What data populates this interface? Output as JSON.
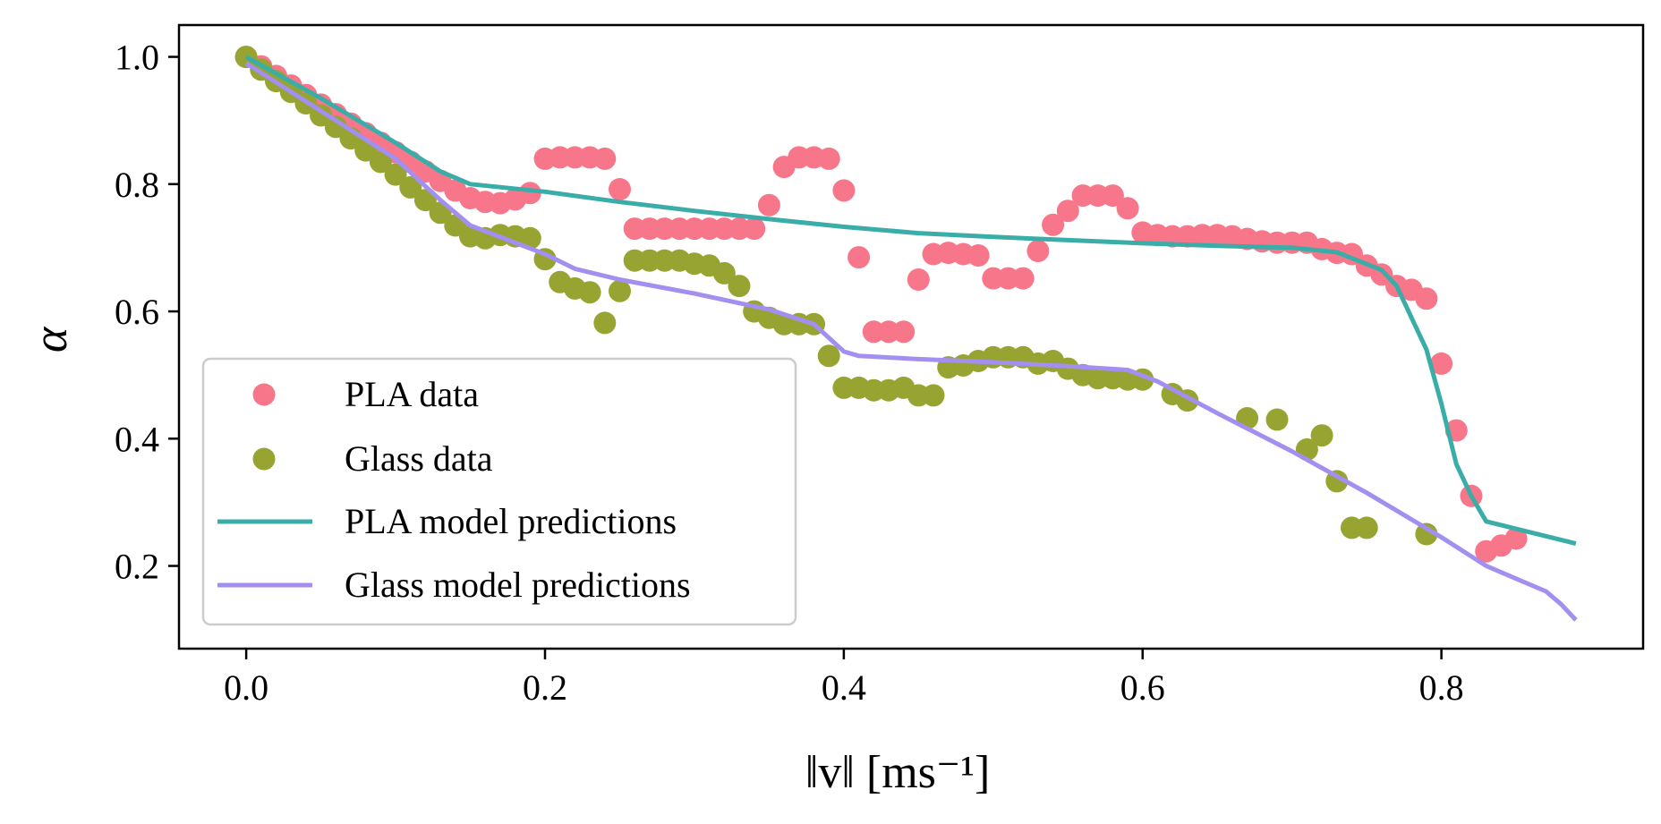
{
  "chart_data": {
    "type": "scatter",
    "xlim": [
      -0.045,
      0.935
    ],
    "ylim": [
      0.07,
      1.05
    ],
    "x_ticks": [
      0.0,
      0.2,
      0.4,
      0.6,
      0.8
    ],
    "x_tick_labels": [
      "0.0",
      "0.2",
      "0.4",
      "0.6",
      "0.8"
    ],
    "y_ticks": [
      0.2,
      0.4,
      0.6,
      0.8,
      1.0
    ],
    "y_tick_labels": [
      "0.2",
      "0.4",
      "0.6",
      "0.8",
      "1.0"
    ],
    "xlabel": "‖v‖ [ms⁻¹]",
    "ylabel": "α",
    "grid": false,
    "legend_position": "lower-left",
    "series": [
      {
        "name": "PLA data",
        "kind": "scatter",
        "color": "#f7768a",
        "points": [
          [
            0.0,
            1.0
          ],
          [
            0.01,
            0.985
          ],
          [
            0.02,
            0.97
          ],
          [
            0.03,
            0.955
          ],
          [
            0.04,
            0.94
          ],
          [
            0.05,
            0.925
          ],
          [
            0.06,
            0.91
          ],
          [
            0.07,
            0.895
          ],
          [
            0.08,
            0.88
          ],
          [
            0.09,
            0.865
          ],
          [
            0.1,
            0.85
          ],
          [
            0.11,
            0.835
          ],
          [
            0.12,
            0.82
          ],
          [
            0.13,
            0.805
          ],
          [
            0.14,
            0.79
          ],
          [
            0.15,
            0.778
          ],
          [
            0.16,
            0.772
          ],
          [
            0.17,
            0.77
          ],
          [
            0.18,
            0.776
          ],
          [
            0.19,
            0.786
          ],
          [
            0.2,
            0.84
          ],
          [
            0.21,
            0.842
          ],
          [
            0.22,
            0.842
          ],
          [
            0.23,
            0.842
          ],
          [
            0.24,
            0.84
          ],
          [
            0.25,
            0.792
          ],
          [
            0.26,
            0.73
          ],
          [
            0.27,
            0.73
          ],
          [
            0.28,
            0.73
          ],
          [
            0.29,
            0.73
          ],
          [
            0.3,
            0.73
          ],
          [
            0.31,
            0.73
          ],
          [
            0.32,
            0.73
          ],
          [
            0.33,
            0.73
          ],
          [
            0.34,
            0.73
          ],
          [
            0.35,
            0.767
          ],
          [
            0.36,
            0.827
          ],
          [
            0.37,
            0.842
          ],
          [
            0.38,
            0.842
          ],
          [
            0.39,
            0.84
          ],
          [
            0.4,
            0.79
          ],
          [
            0.41,
            0.685
          ],
          [
            0.42,
            0.568
          ],
          [
            0.43,
            0.568
          ],
          [
            0.44,
            0.568
          ],
          [
            0.45,
            0.65
          ],
          [
            0.46,
            0.69
          ],
          [
            0.47,
            0.692
          ],
          [
            0.48,
            0.69
          ],
          [
            0.49,
            0.688
          ],
          [
            0.5,
            0.652
          ],
          [
            0.51,
            0.652
          ],
          [
            0.52,
            0.652
          ],
          [
            0.53,
            0.695
          ],
          [
            0.54,
            0.736
          ],
          [
            0.55,
            0.758
          ],
          [
            0.56,
            0.782
          ],
          [
            0.57,
            0.782
          ],
          [
            0.58,
            0.782
          ],
          [
            0.59,
            0.762
          ],
          [
            0.6,
            0.724
          ],
          [
            0.61,
            0.72
          ],
          [
            0.62,
            0.718
          ],
          [
            0.63,
            0.718
          ],
          [
            0.64,
            0.72
          ],
          [
            0.65,
            0.72
          ],
          [
            0.66,
            0.718
          ],
          [
            0.67,
            0.714
          ],
          [
            0.68,
            0.71
          ],
          [
            0.69,
            0.708
          ],
          [
            0.7,
            0.708
          ],
          [
            0.71,
            0.708
          ],
          [
            0.72,
            0.698
          ],
          [
            0.73,
            0.692
          ],
          [
            0.74,
            0.69
          ],
          [
            0.75,
            0.672
          ],
          [
            0.76,
            0.658
          ],
          [
            0.77,
            0.64
          ],
          [
            0.78,
            0.634
          ],
          [
            0.79,
            0.62
          ],
          [
            0.8,
            0.518
          ],
          [
            0.81,
            0.413
          ],
          [
            0.82,
            0.31
          ],
          [
            0.83,
            0.223
          ],
          [
            0.84,
            0.232
          ],
          [
            0.85,
            0.243
          ]
        ]
      },
      {
        "name": "Glass data",
        "kind": "scatter",
        "color": "#97a431",
        "points": [
          [
            0.0,
            1.0
          ],
          [
            0.01,
            0.98
          ],
          [
            0.02,
            0.962
          ],
          [
            0.03,
            0.945
          ],
          [
            0.04,
            0.927
          ],
          [
            0.05,
            0.908
          ],
          [
            0.06,
            0.89
          ],
          [
            0.07,
            0.872
          ],
          [
            0.08,
            0.853
          ],
          [
            0.09,
            0.835
          ],
          [
            0.1,
            0.815
          ],
          [
            0.11,
            0.795
          ],
          [
            0.12,
            0.775
          ],
          [
            0.13,
            0.755
          ],
          [
            0.14,
            0.735
          ],
          [
            0.15,
            0.718
          ],
          [
            0.16,
            0.715
          ],
          [
            0.17,
            0.72
          ],
          [
            0.18,
            0.718
          ],
          [
            0.19,
            0.715
          ],
          [
            0.2,
            0.682
          ],
          [
            0.21,
            0.646
          ],
          [
            0.22,
            0.636
          ],
          [
            0.23,
            0.63
          ],
          [
            0.24,
            0.582
          ],
          [
            0.25,
            0.632
          ],
          [
            0.26,
            0.68
          ],
          [
            0.27,
            0.68
          ],
          [
            0.28,
            0.68
          ],
          [
            0.29,
            0.68
          ],
          [
            0.3,
            0.675
          ],
          [
            0.31,
            0.672
          ],
          [
            0.32,
            0.66
          ],
          [
            0.33,
            0.64
          ],
          [
            0.34,
            0.6
          ],
          [
            0.35,
            0.59
          ],
          [
            0.36,
            0.58
          ],
          [
            0.37,
            0.58
          ],
          [
            0.38,
            0.58
          ],
          [
            0.39,
            0.53
          ],
          [
            0.4,
            0.48
          ],
          [
            0.41,
            0.48
          ],
          [
            0.42,
            0.476
          ],
          [
            0.43,
            0.476
          ],
          [
            0.44,
            0.48
          ],
          [
            0.45,
            0.468
          ],
          [
            0.46,
            0.468
          ],
          [
            0.47,
            0.512
          ],
          [
            0.48,
            0.515
          ],
          [
            0.49,
            0.522
          ],
          [
            0.5,
            0.528
          ],
          [
            0.51,
            0.528
          ],
          [
            0.52,
            0.528
          ],
          [
            0.53,
            0.518
          ],
          [
            0.54,
            0.522
          ],
          [
            0.55,
            0.51
          ],
          [
            0.56,
            0.5
          ],
          [
            0.57,
            0.495
          ],
          [
            0.58,
            0.495
          ],
          [
            0.59,
            0.493
          ],
          [
            0.6,
            0.493
          ],
          [
            0.62,
            0.47
          ],
          [
            0.63,
            0.46
          ],
          [
            0.67,
            0.432
          ],
          [
            0.69,
            0.43
          ],
          [
            0.71,
            0.383
          ],
          [
            0.72,
            0.405
          ],
          [
            0.73,
            0.333
          ],
          [
            0.74,
            0.26
          ],
          [
            0.75,
            0.26
          ],
          [
            0.79,
            0.25
          ]
        ]
      },
      {
        "name": "PLA model predictions",
        "kind": "line",
        "color": "#3aada8",
        "points": [
          [
            0.0,
            1.0
          ],
          [
            0.05,
            0.935
          ],
          [
            0.1,
            0.865
          ],
          [
            0.13,
            0.82
          ],
          [
            0.15,
            0.8
          ],
          [
            0.2,
            0.788
          ],
          [
            0.25,
            0.772
          ],
          [
            0.3,
            0.758
          ],
          [
            0.35,
            0.745
          ],
          [
            0.4,
            0.733
          ],
          [
            0.45,
            0.723
          ],
          [
            0.5,
            0.717
          ],
          [
            0.55,
            0.712
          ],
          [
            0.6,
            0.707
          ],
          [
            0.65,
            0.703
          ],
          [
            0.7,
            0.7
          ],
          [
            0.73,
            0.693
          ],
          [
            0.76,
            0.665
          ],
          [
            0.77,
            0.64
          ],
          [
            0.79,
            0.54
          ],
          [
            0.8,
            0.455
          ],
          [
            0.81,
            0.36
          ],
          [
            0.82,
            0.31
          ],
          [
            0.83,
            0.27
          ],
          [
            0.89,
            0.235
          ]
        ]
      },
      {
        "name": "Glass model predictions",
        "kind": "line",
        "color": "#a38ff0",
        "points": [
          [
            0.0,
            0.99
          ],
          [
            0.05,
            0.915
          ],
          [
            0.1,
            0.84
          ],
          [
            0.13,
            0.775
          ],
          [
            0.15,
            0.735
          ],
          [
            0.2,
            0.69
          ],
          [
            0.22,
            0.667
          ],
          [
            0.25,
            0.65
          ],
          [
            0.3,
            0.628
          ],
          [
            0.35,
            0.603
          ],
          [
            0.38,
            0.58
          ],
          [
            0.4,
            0.537
          ],
          [
            0.41,
            0.53
          ],
          [
            0.45,
            0.525
          ],
          [
            0.5,
            0.52
          ],
          [
            0.55,
            0.514
          ],
          [
            0.59,
            0.508
          ],
          [
            0.61,
            0.49
          ],
          [
            0.65,
            0.44
          ],
          [
            0.7,
            0.38
          ],
          [
            0.75,
            0.315
          ],
          [
            0.8,
            0.245
          ],
          [
            0.83,
            0.2
          ],
          [
            0.85,
            0.18
          ],
          [
            0.87,
            0.16
          ],
          [
            0.88,
            0.14
          ],
          [
            0.89,
            0.115
          ]
        ]
      }
    ]
  }
}
